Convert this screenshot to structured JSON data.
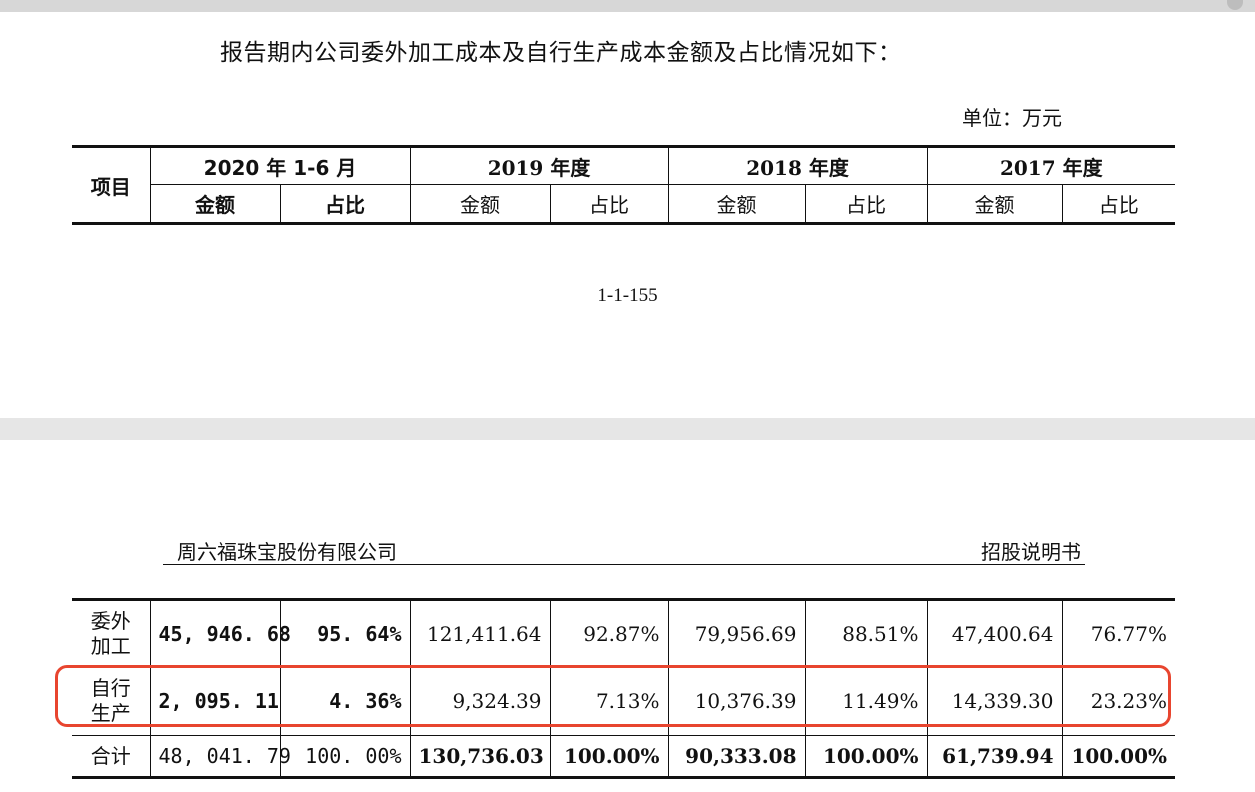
{
  "intro_text": "报告期内公司委外加工成本及自行生产成本金额及占比情况如下：",
  "unit_label": "单位：万元",
  "page_number": "1-1-155",
  "running_header": {
    "company": "周六福珠宝股份有限公司",
    "doc_type": "招股说明书"
  },
  "table": {
    "item_header": "项目",
    "periods": [
      "2020 年 1-6 月",
      "2019 年度",
      "2018 年度",
      "2017 年度"
    ],
    "sub_headers": {
      "amount": "金额",
      "ratio": "占比"
    },
    "rows": [
      {
        "label_line1": "委外",
        "label_line2": "加工",
        "values": [
          "45, 946. 68",
          "95. 64%",
          "121,411.64",
          "92.87%",
          "79,956.69",
          "88.51%",
          "47,400.64",
          "76.77%"
        ]
      },
      {
        "label_line1": "自行",
        "label_line2": "生产",
        "values": [
          "2, 095. 11",
          "4. 36%",
          "9,324.39",
          "7.13%",
          "10,376.39",
          "11.49%",
          "14,339.30",
          "23.23%"
        ]
      },
      {
        "label": "合计",
        "values": [
          "48, 041. 79",
          "100. 00%",
          "130,736.03",
          "100.00%",
          "90,333.08",
          "100.00%",
          "61,739.94",
          "100.00%"
        ]
      }
    ]
  },
  "highlight_color": "#e8452f"
}
